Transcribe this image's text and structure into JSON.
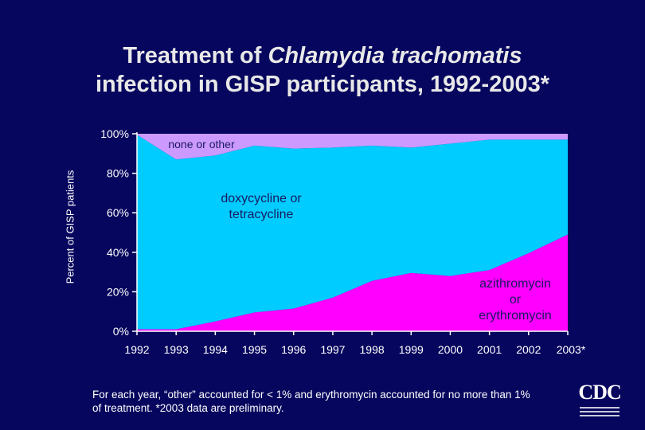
{
  "title_part1": "Treatment of ",
  "title_italic": "Chlamydia trachomatis",
  "title_line2": "infection in GISP participants, 1992-2003*",
  "footnote": "For each year, “other” accounted for < 1% and erythromycin accounted for no more than 1% of treatment.  *2003 data are preliminary.",
  "logo_text": "CDC",
  "colors": {
    "background": "#06065e",
    "azithromycin": "#ff00ff",
    "doxycycline": "#00ccff",
    "other": "#cc99ff",
    "axis": "#ffffff"
  },
  "chart_data": {
    "type": "area",
    "stacked": true,
    "ylabel": "Percent of GISP patients",
    "xlabel": "",
    "ylim": [
      0,
      100
    ],
    "y_ticks": [
      "0%",
      "20%",
      "40%",
      "60%",
      "80%",
      "100%"
    ],
    "categories": [
      "1992",
      "1993",
      "1994",
      "1995",
      "1996",
      "1997",
      "1998",
      "1999",
      "2000",
      "2001",
      "2002",
      "2003*"
    ],
    "series": [
      {
        "name": "azithromycin or erythromycin",
        "color": "#ff00ff",
        "values": [
          1,
          1,
          5,
          9.5,
          11.5,
          17,
          25.5,
          29.5,
          28,
          31,
          39.5,
          49
        ]
      },
      {
        "name": "doxycycline or tetracycline",
        "color": "#00ccff",
        "values": [
          98.5,
          86,
          84,
          84.5,
          81,
          76,
          68.5,
          63.5,
          67,
          66,
          57.5,
          48
        ]
      },
      {
        "name": "none or other",
        "color": "#cc99ff",
        "values": [
          0.5,
          13,
          11,
          6,
          7.5,
          7,
          6,
          7,
          5,
          3,
          3,
          3
        ]
      }
    ],
    "annotations": [
      {
        "lines": [
          "none or other"
        ]
      },
      {
        "lines": [
          "doxycycline or",
          "tetracycline"
        ]
      },
      {
        "lines": [
          "azithromycin",
          "or",
          "erythromycin"
        ]
      }
    ]
  }
}
